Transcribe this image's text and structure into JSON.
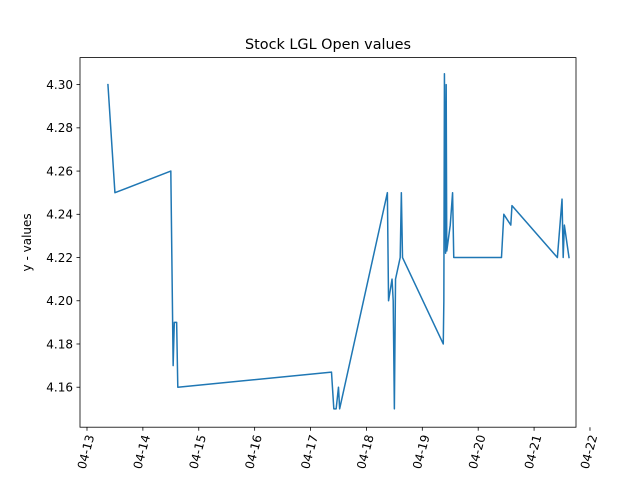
{
  "chart_data": {
    "type": "line",
    "title": "Stock LGL Open values",
    "xlabel": "",
    "ylabel": "y - values",
    "x_axis": {
      "type": "date",
      "tick_labels": [
        "04-13",
        "04-14",
        "04-15",
        "04-16",
        "04-17",
        "04-18",
        "04-19",
        "04-20",
        "04-21",
        "04-22"
      ],
      "tick_dates": [
        "2024-04-13",
        "2024-04-14",
        "2024-04-15",
        "2024-04-16",
        "2024-04-17",
        "2024-04-18",
        "2024-04-19",
        "2024-04-20",
        "2024-04-21",
        "2024-04-22"
      ],
      "tick_label_rotation": 75
    },
    "xlim": [
      "2024-04-12 21:00",
      "2024-04-21 18:00"
    ],
    "ylim": [
      4.1415,
      4.3125
    ],
    "y_ticks": [
      4.16,
      4.18,
      4.2,
      4.22,
      4.24,
      4.26,
      4.28,
      4.3
    ],
    "y_tick_labels": [
      "4.16",
      "4.18",
      "4.20",
      "4.22",
      "4.24",
      "4.26",
      "4.28",
      "4.30"
    ],
    "grid": false,
    "legend": false,
    "series": [
      {
        "color": "#1f77b4",
        "points": [
          [
            "2024-04-13 09:00",
            4.3
          ],
          [
            "2024-04-13 12:00",
            4.25
          ],
          [
            "2024-04-14 12:00",
            4.26
          ],
          [
            "2024-04-14 13:00",
            4.17
          ],
          [
            "2024-04-14 13:30",
            4.19
          ],
          [
            "2024-04-14 14:30",
            4.19
          ],
          [
            "2024-04-14 15:00",
            4.16
          ],
          [
            "2024-04-17 09:00",
            4.167
          ],
          [
            "2024-04-17 10:00",
            4.15
          ],
          [
            "2024-04-17 11:00",
            4.15
          ],
          [
            "2024-04-17 12:00",
            4.16
          ],
          [
            "2024-04-17 12:30",
            4.15
          ],
          [
            "2024-04-18 09:00",
            4.25
          ],
          [
            "2024-04-18 09:30",
            4.2
          ],
          [
            "2024-04-18 11:00",
            4.21
          ],
          [
            "2024-04-18 11:30",
            4.2
          ],
          [
            "2024-04-18 12:00",
            4.15
          ],
          [
            "2024-04-18 12:30",
            4.21
          ],
          [
            "2024-04-18 14:30",
            4.22
          ],
          [
            "2024-04-18 15:00",
            4.25
          ],
          [
            "2024-04-18 15:30",
            4.22
          ],
          [
            "2024-04-19 09:00",
            4.18
          ],
          [
            "2024-04-19 09:15",
            4.2
          ],
          [
            "2024-04-19 09:30",
            4.305
          ],
          [
            "2024-04-19 10:00",
            4.222
          ],
          [
            "2024-04-19 10:15",
            4.3
          ],
          [
            "2024-04-19 10:30",
            4.223
          ],
          [
            "2024-04-19 12:00",
            4.235
          ],
          [
            "2024-04-19 13:00",
            4.25
          ],
          [
            "2024-04-19 13:30",
            4.22
          ],
          [
            "2024-04-20 10:00",
            4.22
          ],
          [
            "2024-04-20 11:00",
            4.24
          ],
          [
            "2024-04-20 14:00",
            4.235
          ],
          [
            "2024-04-20 14:30",
            4.244
          ],
          [
            "2024-04-21 10:00",
            4.22
          ],
          [
            "2024-04-21 12:00",
            4.247
          ],
          [
            "2024-04-21 12:30",
            4.22
          ],
          [
            "2024-04-21 13:00",
            4.235
          ],
          [
            "2024-04-21 15:00",
            4.22
          ]
        ]
      }
    ]
  }
}
